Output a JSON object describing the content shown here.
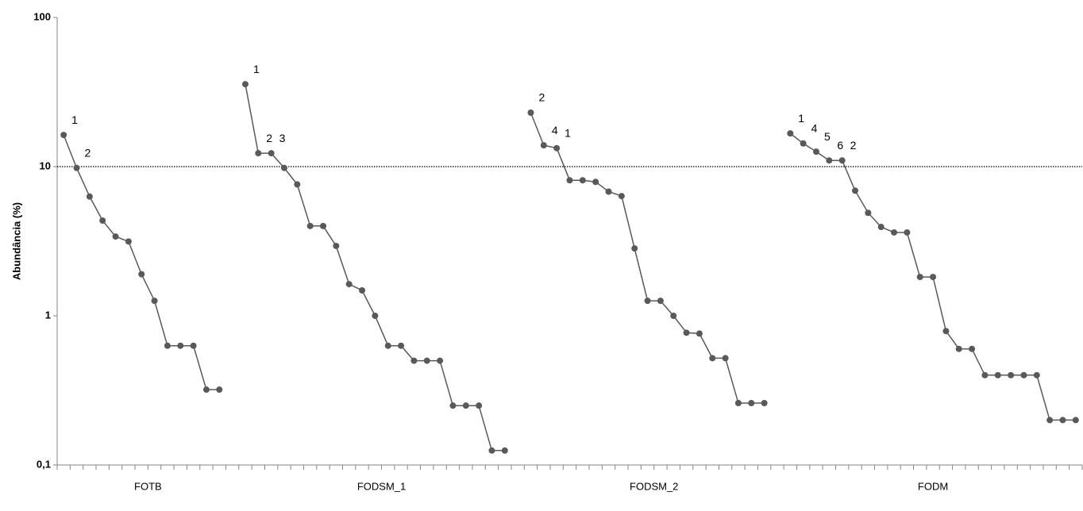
{
  "chart_data": {
    "type": "line",
    "y_label": "Abundância (%)",
    "log_scale": true,
    "ylim": [
      0.1,
      100
    ],
    "yticks": [
      {
        "value": 0.1,
        "label": "0,1"
      },
      1,
      10,
      100
    ],
    "reference_line": 10,
    "color": "#595959",
    "series": [
      {
        "name": "FOTB",
        "values": [
          16.3,
          9.8,
          6.3,
          4.35,
          3.4,
          3.15,
          1.9,
          1.26,
          0.63,
          0.63,
          0.63,
          0.32,
          0.32,
          null
        ],
        "point_labels": [
          "1",
          "2",
          null,
          null,
          null,
          null,
          null,
          null,
          null,
          null,
          null,
          null,
          null,
          null
        ]
      },
      {
        "name": "FODSM_1",
        "values": [
          35.7,
          12.3,
          12.3,
          9.8,
          7.6,
          4.0,
          4.0,
          2.94,
          1.63,
          1.48,
          1.0,
          0.63,
          0.63,
          0.5,
          0.5,
          0.5,
          0.25,
          0.25,
          0.25,
          0.125,
          0.125,
          null
        ],
        "point_labels": [
          "1",
          "2",
          "3",
          null,
          null,
          null,
          null,
          null,
          null,
          null,
          null,
          null,
          null,
          null,
          null,
          null,
          null,
          null,
          null,
          null,
          null,
          null
        ]
      },
      {
        "name": "FODSM_2",
        "values": [
          23,
          13.9,
          13.3,
          8.1,
          8.1,
          7.9,
          6.8,
          6.35,
          2.83,
          1.26,
          1.26,
          1.0,
          0.77,
          0.76,
          0.52,
          0.52,
          0.26,
          0.26,
          0.26,
          null
        ],
        "point_labels": [
          "2",
          "4",
          "1",
          null,
          null,
          null,
          null,
          null,
          null,
          null,
          null,
          null,
          null,
          null,
          null,
          null,
          null,
          null,
          null,
          null
        ]
      },
      {
        "name": "FODM",
        "values": [
          16.7,
          14.3,
          12.6,
          11,
          11,
          6.9,
          4.9,
          3.94,
          3.62,
          3.62,
          1.82,
          1.82,
          0.79,
          0.6,
          0.6,
          0.4,
          0.4,
          0.4,
          0.4,
          0.4,
          0.2,
          0.2,
          0.2
        ],
        "point_labels": [
          "1",
          "4",
          "5",
          "6",
          "2",
          null,
          null,
          null,
          null,
          null,
          null,
          null,
          null,
          null,
          null,
          null,
          null,
          null,
          null,
          null,
          null,
          null,
          null
        ]
      }
    ]
  }
}
